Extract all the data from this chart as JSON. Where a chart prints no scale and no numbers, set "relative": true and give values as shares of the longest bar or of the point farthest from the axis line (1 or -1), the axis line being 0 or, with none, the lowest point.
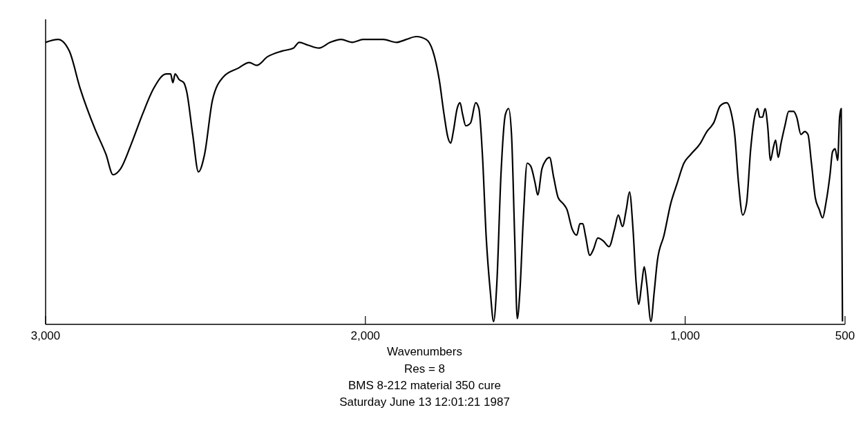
{
  "chart_data": {
    "type": "line",
    "relative": true,
    "xlabel": "Wavenumbers",
    "xlim": [
      3000,
      500
    ],
    "xticks": [
      {
        "value": 3000,
        "label": "3,000"
      },
      {
        "value": 2000,
        "label": "2,000"
      },
      {
        "value": 1000,
        "label": "1,000"
      },
      500
    ],
    "annotations": [
      "Res = 8",
      "BMS 8-212 material 350 cure",
      "Saturday June 13  12:01:21  1987"
    ],
    "marker": "none",
    "line_style": "solid",
    "series": [
      {
        "color": "#000000",
        "x": [
          3000,
          2961,
          2926,
          2892,
          2846,
          2811,
          2789,
          2766,
          2731,
          2697,
          2662,
          2623,
          2609,
          2602,
          2595,
          2582,
          2568,
          2559,
          2540,
          2522,
          2503,
          2478,
          2444,
          2398,
          2363,
          2340,
          2306,
          2260,
          2225,
          2207,
          2179,
          2145,
          2110,
          2076,
          2041,
          2007,
          1975,
          1944,
          1903,
          1872,
          1841,
          1810,
          1789,
          1769,
          1754,
          1742,
          1733,
          1725,
          1713,
          1704,
          1696,
          1686,
          1671,
          1655,
          1645,
          1634,
          1622,
          1609,
          1599,
          1589,
          1576,
          1562,
          1552,
          1543,
          1533,
          1525,
          1517,
          1506,
          1494,
          1483,
          1469,
          1461,
          1448,
          1436,
          1424,
          1411,
          1397,
          1382,
          1370,
          1353,
          1339,
          1329,
          1320,
          1312,
          1298,
          1287,
          1273,
          1256,
          1238,
          1221,
          1209,
          1196,
          1184,
          1174,
          1163,
          1153,
          1145,
          1136,
          1128,
          1120,
          1107,
          1097,
          1087,
          1066,
          1045,
          1025,
          1004,
          983,
          952,
          932,
          917,
          911,
          890,
          870,
          857,
          845,
          833,
          820,
          808,
          795,
          783,
          773,
          767,
          758,
          750,
          742,
          733,
          725,
          717,
          709,
          700,
          688,
          676,
          661,
          651,
          638,
          626,
          616,
          605,
          593,
          581,
          570,
          560,
          547,
          539,
          531,
          523,
          517,
          512,
          508
        ],
        "values": [
          0.98,
          0.99,
          0.95,
          0.82,
          0.68,
          0.59,
          0.52,
          0.54,
          0.63,
          0.73,
          0.82,
          0.87,
          0.87,
          0.84,
          0.87,
          0.85,
          0.84,
          0.81,
          0.66,
          0.53,
          0.59,
          0.78,
          0.86,
          0.89,
          0.91,
          0.9,
          0.93,
          0.95,
          0.96,
          0.98,
          0.97,
          0.96,
          0.98,
          0.99,
          0.98,
          0.99,
          0.99,
          0.99,
          0.98,
          0.99,
          1.0,
          0.99,
          0.95,
          0.85,
          0.73,
          0.65,
          0.63,
          0.67,
          0.75,
          0.77,
          0.73,
          0.69,
          0.7,
          0.77,
          0.75,
          0.59,
          0.3,
          0.11,
          0.01,
          0.14,
          0.52,
          0.73,
          0.75,
          0.66,
          0.3,
          0.02,
          0.11,
          0.37,
          0.56,
          0.55,
          0.49,
          0.45,
          0.54,
          0.57,
          0.58,
          0.51,
          0.44,
          0.42,
          0.4,
          0.33,
          0.31,
          0.35,
          0.35,
          0.31,
          0.24,
          0.26,
          0.3,
          0.29,
          0.27,
          0.33,
          0.38,
          0.34,
          0.4,
          0.46,
          0.33,
          0.14,
          0.07,
          0.14,
          0.2,
          0.14,
          0.01,
          0.11,
          0.22,
          0.31,
          0.42,
          0.49,
          0.56,
          0.59,
          0.63,
          0.67,
          0.69,
          0.7,
          0.76,
          0.77,
          0.74,
          0.66,
          0.49,
          0.38,
          0.42,
          0.61,
          0.72,
          0.75,
          0.72,
          0.72,
          0.75,
          0.69,
          0.57,
          0.61,
          0.64,
          0.58,
          0.63,
          0.69,
          0.74,
          0.74,
          0.72,
          0.66,
          0.67,
          0.66,
          0.56,
          0.44,
          0.4,
          0.37,
          0.42,
          0.52,
          0.6,
          0.61,
          0.57,
          0.72,
          0.75,
          0.01
        ]
      }
    ]
  }
}
